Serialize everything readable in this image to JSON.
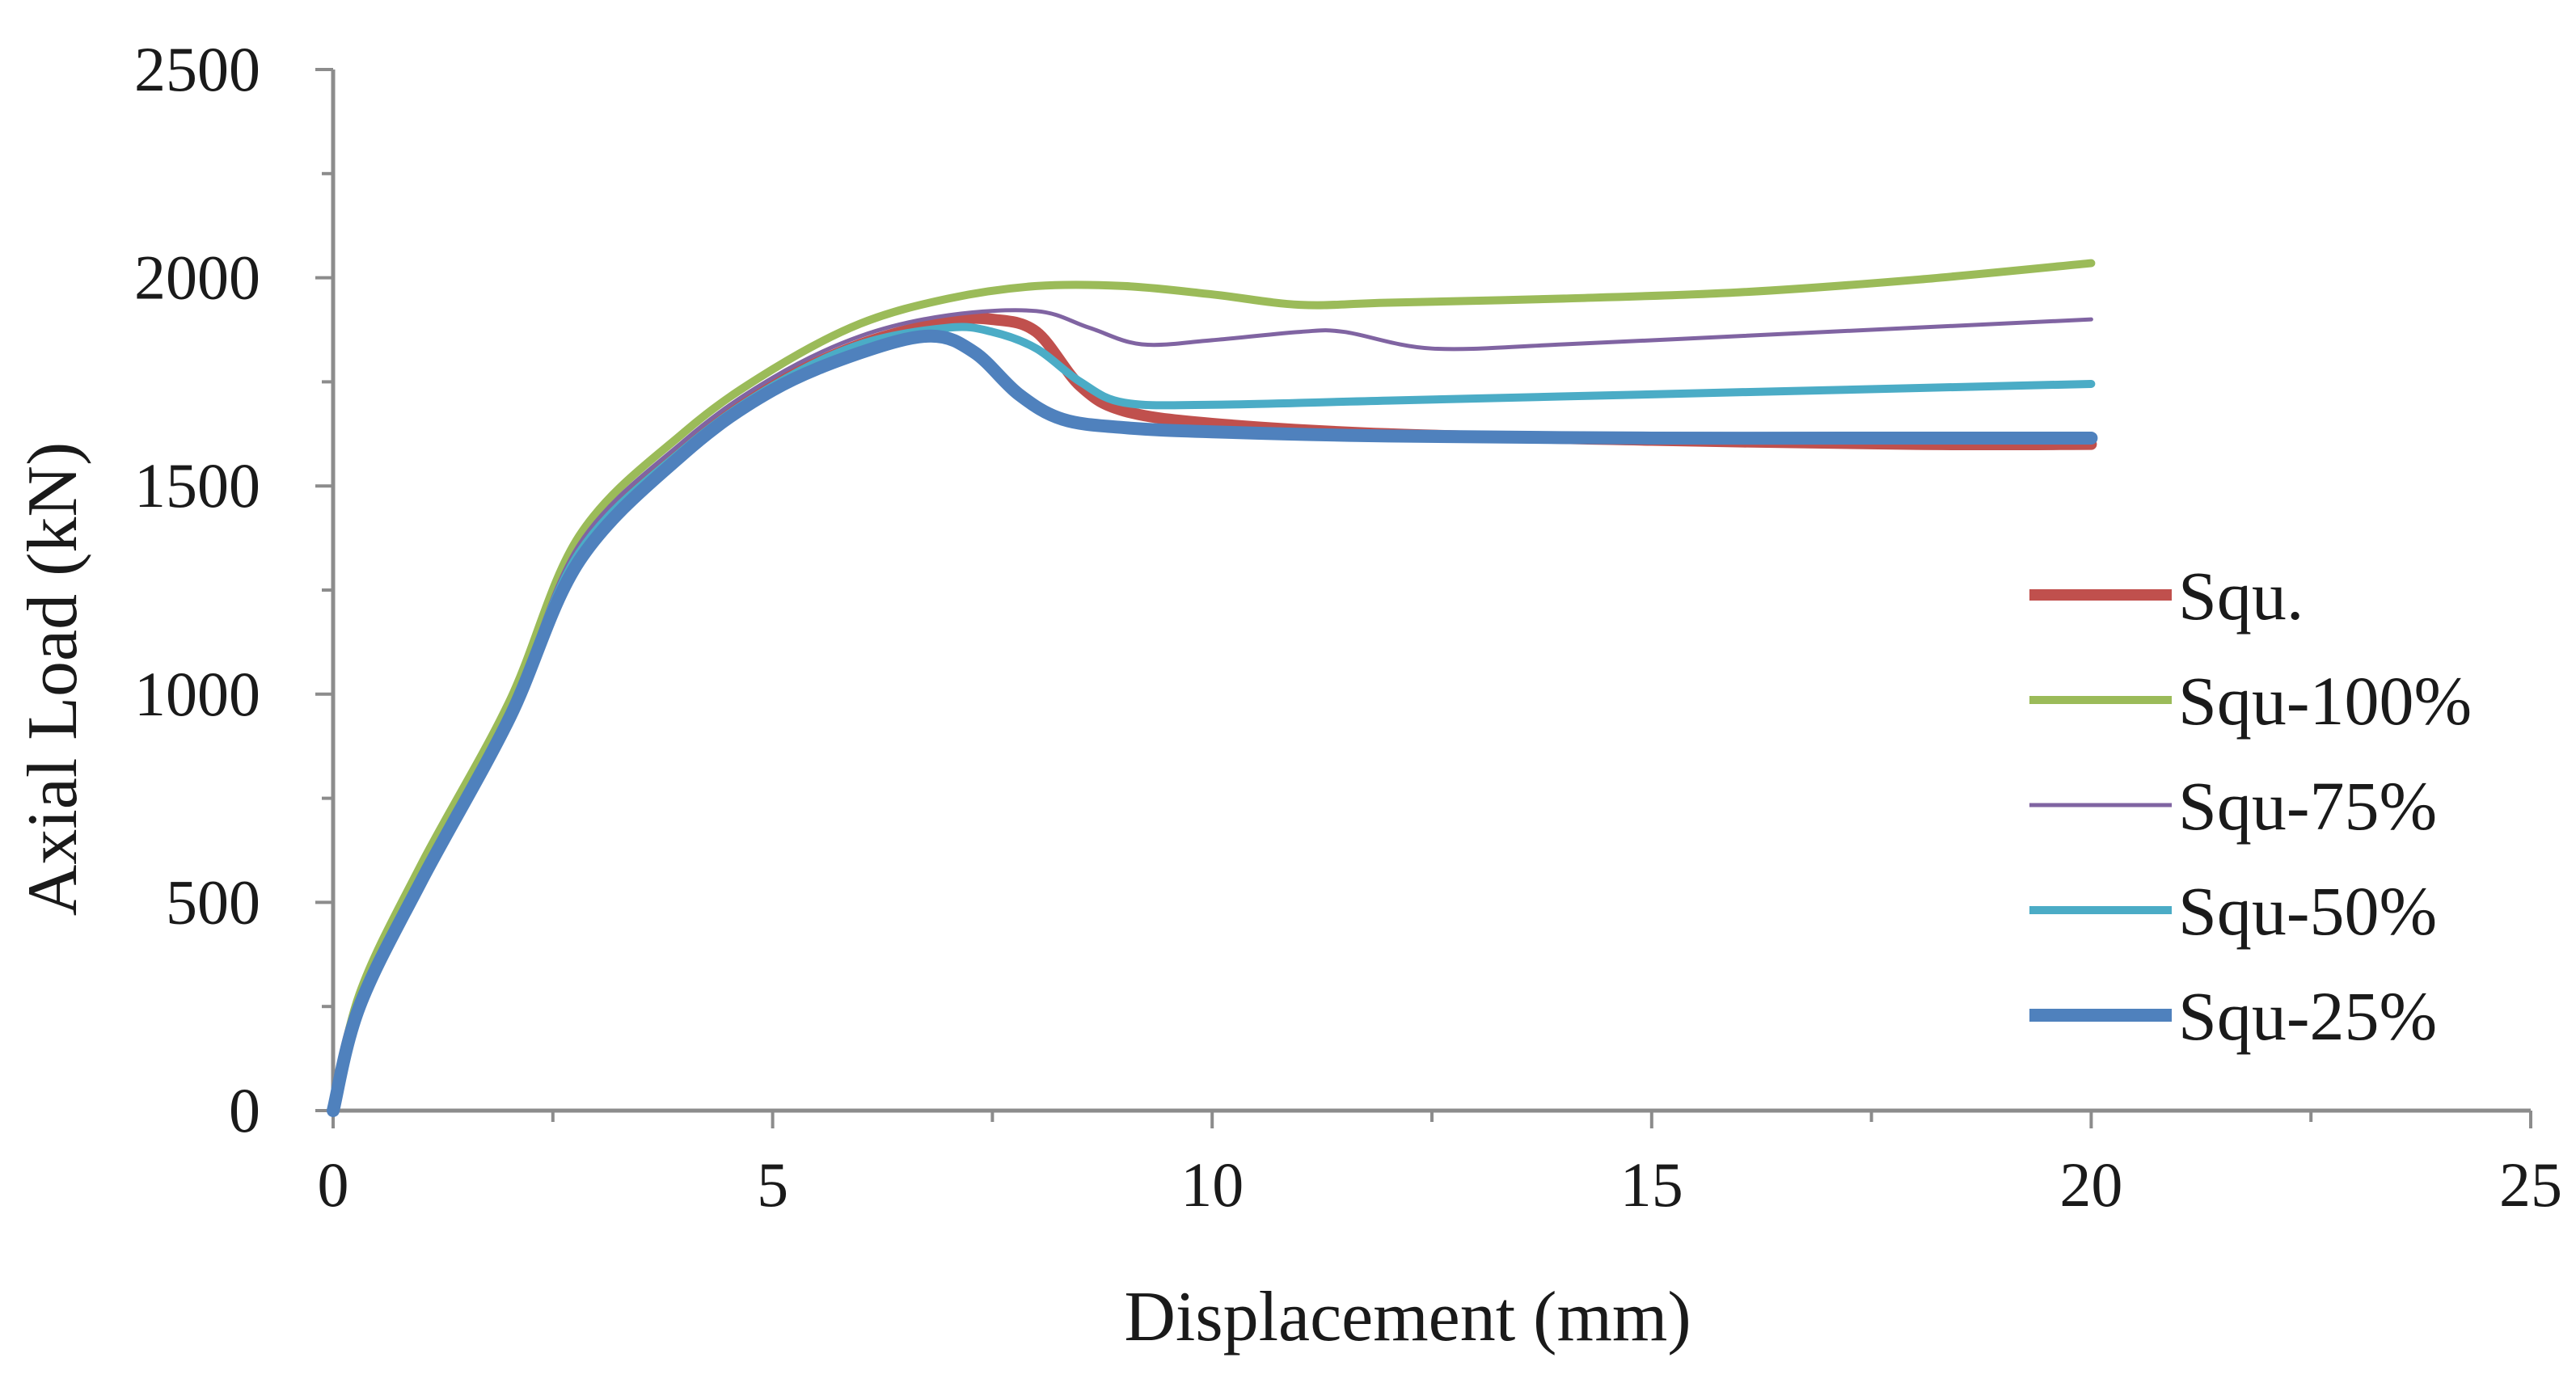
{
  "chart_data": {
    "type": "line",
    "xlabel": "Displacement  (mm)",
    "ylabel": "Axial Load  (kN)",
    "xlim": [
      0,
      25
    ],
    "ylim": [
      0,
      2500
    ],
    "xticks": [
      0,
      5,
      10,
      15,
      20,
      25
    ],
    "yticks": [
      0,
      500,
      1000,
      1500,
      2000,
      2500
    ],
    "xtick_labels": [
      "0",
      "5",
      "10",
      "15",
      "20",
      "25"
    ],
    "ytick_labels": [
      "0",
      "500",
      "1000",
      "1500",
      "2000",
      "2500"
    ],
    "grid": false,
    "legend_position": "right",
    "series": [
      {
        "name": "Squ.",
        "color": "#c0504d",
        "x": [
          0,
          0.3,
          1,
          2,
          2.8,
          4,
          5,
          6,
          7,
          7.5,
          8,
          8.5,
          9,
          10,
          12,
          15,
          18,
          20
        ],
        "y": [
          0,
          260,
          560,
          950,
          1350,
          1590,
          1740,
          1840,
          1895,
          1900,
          1870,
          1740,
          1680,
          1650,
          1625,
          1610,
          1600,
          1600
        ]
      },
      {
        "name": "Squ-100%",
        "color": "#9bbb59",
        "x": [
          0,
          0.3,
          1,
          2,
          2.8,
          4,
          5,
          6,
          7,
          8,
          9,
          10,
          11,
          12,
          14,
          16,
          18,
          20
        ],
        "y": [
          0,
          280,
          590,
          980,
          1380,
          1630,
          1780,
          1890,
          1950,
          1980,
          1980,
          1960,
          1935,
          1940,
          1950,
          1965,
          1995,
          2035
        ]
      },
      {
        "name": "Squ-75%",
        "color": "#8064a2",
        "x": [
          0,
          0.3,
          1,
          2,
          2.8,
          4,
          5,
          6,
          7,
          8,
          8.6,
          9.2,
          10,
          11,
          11.5,
          12.5,
          14,
          16,
          18,
          20
        ],
        "y": [
          0,
          270,
          570,
          960,
          1360,
          1610,
          1760,
          1860,
          1910,
          1920,
          1880,
          1840,
          1850,
          1870,
          1870,
          1830,
          1840,
          1860,
          1880,
          1900
        ]
      },
      {
        "name": "Squ-50%",
        "color": "#4bacc6",
        "x": [
          0,
          0.3,
          1,
          2,
          2.8,
          4,
          5,
          6,
          7,
          7.5,
          8,
          8.5,
          9,
          10,
          12,
          15,
          18,
          20
        ],
        "y": [
          0,
          260,
          560,
          950,
          1340,
          1590,
          1740,
          1840,
          1880,
          1870,
          1830,
          1750,
          1700,
          1695,
          1705,
          1720,
          1735,
          1745
        ]
      },
      {
        "name": "Squ-25%",
        "color": "#4f81bd",
        "x": [
          0,
          0.3,
          1,
          2,
          2.8,
          4,
          5,
          6,
          6.8,
          7.3,
          7.8,
          8.3,
          9,
          10,
          12,
          15,
          18,
          20
        ],
        "y": [
          0,
          250,
          550,
          940,
          1320,
          1580,
          1730,
          1820,
          1860,
          1820,
          1720,
          1660,
          1640,
          1630,
          1620,
          1615,
          1615,
          1615
        ]
      }
    ]
  }
}
